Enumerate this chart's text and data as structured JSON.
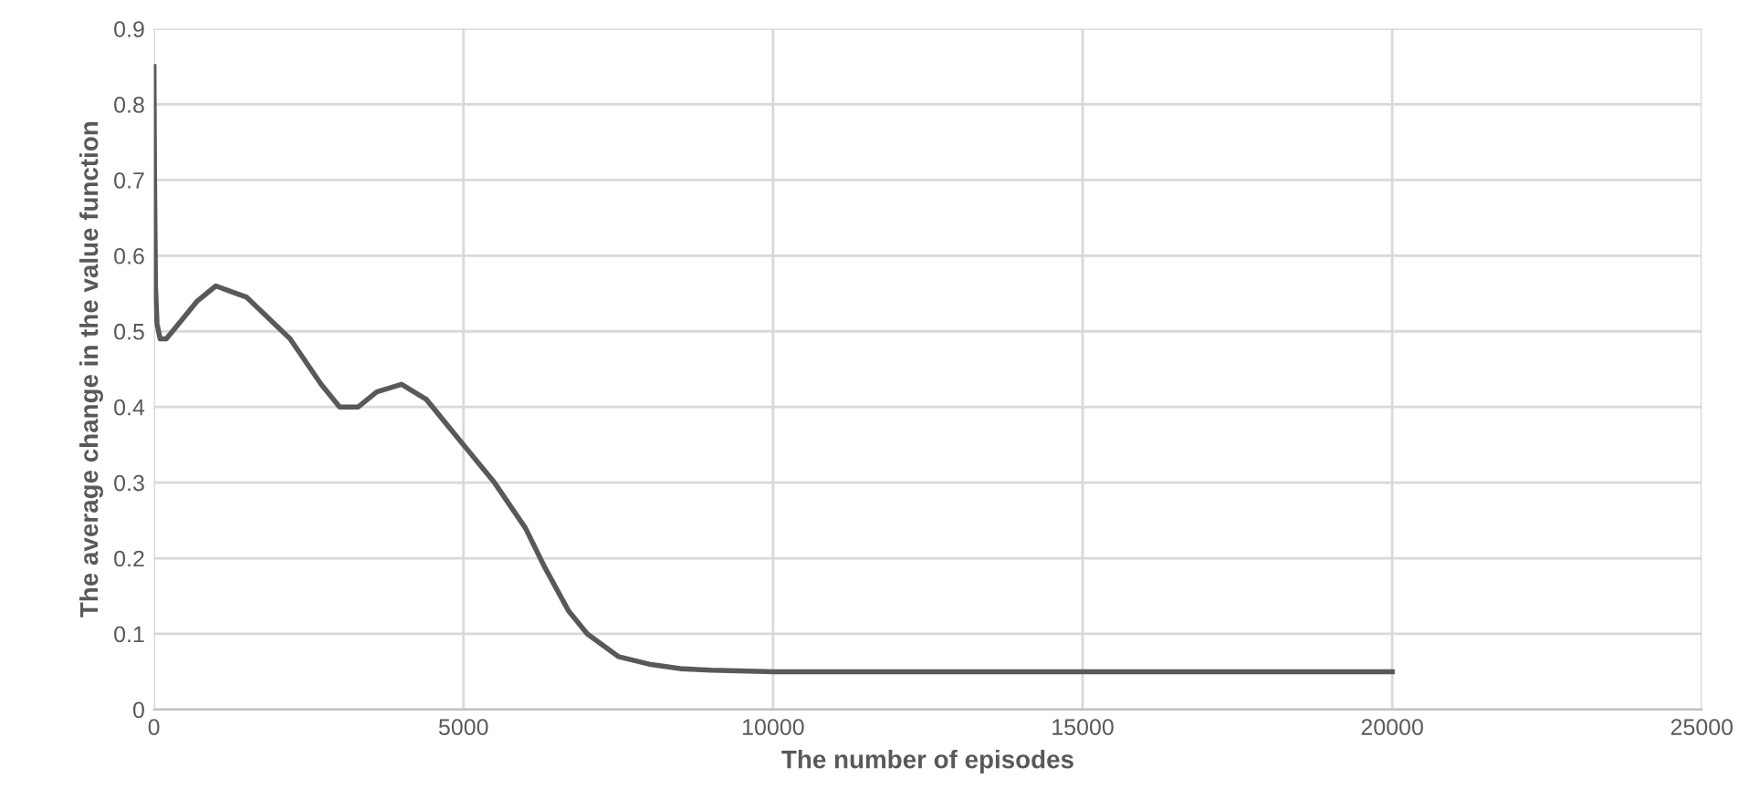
{
  "chart_data": {
    "type": "line",
    "xlabel": "The number of episodes",
    "ylabel": "The average change in the value function",
    "x": [
      0,
      10,
      25,
      50,
      100,
      200,
      400,
      700,
      1000,
      1500,
      2200,
      2700,
      3000,
      3300,
      3600,
      4000,
      4400,
      5000,
      5500,
      6000,
      6300,
      6700,
      7000,
      7500,
      8000,
      8500,
      9000,
      10000,
      15000,
      20000
    ],
    "series": [
      {
        "color": "#595959",
        "values": [
          0.85,
          0.7,
          0.56,
          0.51,
          0.49,
          0.49,
          0.51,
          0.54,
          0.56,
          0.545,
          0.49,
          0.43,
          0.4,
          0.4,
          0.42,
          0.43,
          0.41,
          0.35,
          0.3,
          0.24,
          0.19,
          0.13,
          0.1,
          0.07,
          0.06,
          0.054,
          0.052,
          0.05,
          0.05,
          0.05
        ]
      }
    ],
    "xlim": [
      0,
      25000
    ],
    "xticks": [
      0,
      5000,
      10000,
      15000,
      20000,
      25000
    ],
    "ylim": [
      0,
      0.9
    ],
    "yticks": [
      0,
      0.1,
      0.2,
      0.3,
      0.4,
      0.5,
      0.6,
      0.7,
      0.8,
      0.9
    ],
    "grid": true,
    "marker": "none",
    "line_style": "solid"
  }
}
